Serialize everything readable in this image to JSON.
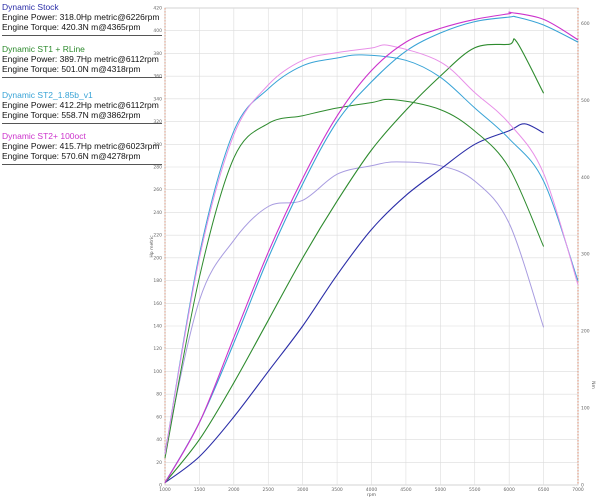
{
  "chart_data": {
    "type": "line",
    "title": "",
    "xlabel": "rpm",
    "ylabel_left": "Hp metric",
    "ylabel_right": "Nm",
    "xlim": [
      1000,
      7000
    ],
    "ylim_power": [
      0,
      420
    ],
    "ylim_torque": [
      0,
      620
    ],
    "x_ticks": [
      1000,
      1500,
      2000,
      2500,
      3000,
      3500,
      4000,
      4500,
      5000,
      5500,
      6000,
      6500,
      7000
    ],
    "power_ticks": [
      0,
      20,
      40,
      60,
      80,
      100,
      120,
      140,
      160,
      180,
      200,
      220,
      240,
      260,
      280,
      300,
      320,
      340,
      360,
      380,
      400,
      420
    ],
    "torque_ticks": [
      0,
      100,
      200,
      300,
      400,
      500,
      600
    ],
    "grid": true,
    "legend_position": "top-left",
    "series": [
      {
        "name": "Dynamic Stock",
        "color": "#2b2ea8",
        "torque_color": "#a89ce0",
        "summary": [
          "Engine Power: 318.0Hp metric@6226rpm",
          "Engine Torque: 420.3N m@4365rpm"
        ],
        "power": {
          "x": [
            1000,
            1500,
            2000,
            2500,
            3000,
            3500,
            4000,
            4500,
            5000,
            5500,
            6000,
            6226,
            6500
          ],
          "y": [
            2,
            25,
            60,
            100,
            140,
            185,
            225,
            255,
            278,
            300,
            312,
            318,
            310
          ]
        },
        "torque": {
          "x": [
            1000,
            1500,
            2000,
            2500,
            3000,
            3500,
            4000,
            4365,
            5000,
            5500,
            6000,
            6500
          ],
          "y": [
            45,
            240,
            318,
            362,
            370,
            404,
            415,
            420,
            415,
            395,
            340,
            205
          ]
        }
      },
      {
        "name": "Dynamic ST1 + RLine",
        "color": "#2e8b2e",
        "torque_color": "#2e8b2e",
        "summary": [
          "Engine Power: 389.7Hp metric@6112rpm",
          "Engine Torque: 501.0N m@4318rpm"
        ],
        "power": {
          "x": [
            1000,
            1500,
            2000,
            2500,
            3000,
            3500,
            4000,
            4500,
            5000,
            5500,
            6000,
            6112,
            6500
          ],
          "y": [
            2,
            40,
            90,
            145,
            200,
            250,
            295,
            330,
            360,
            385,
            388,
            390,
            345
          ]
        },
        "torque": {
          "x": [
            1000,
            1500,
            2000,
            2500,
            3000,
            3500,
            4000,
            4318,
            5000,
            5500,
            6000,
            6500
          ],
          "y": [
            35,
            270,
            425,
            470,
            480,
            490,
            497,
            501,
            488,
            460,
            412,
            310
          ]
        }
      },
      {
        "name": "Dynamic ST2_1.85b_v1",
        "color": "#38a3d6",
        "torque_color": "#38a3d6",
        "summary": [
          "Engine Power: 412.2Hp metric@6112rpm",
          "Engine Torque: 558.7N m@3862rpm"
        ],
        "power": {
          "x": [
            1000,
            1500,
            2000,
            2500,
            3000,
            3500,
            4000,
            4500,
            5000,
            5500,
            6000,
            6112,
            6500,
            7000
          ],
          "y": [
            2,
            55,
            125,
            200,
            265,
            320,
            355,
            382,
            398,
            408,
            412,
            412,
            405,
            390
          ]
        },
        "torque": {
          "x": [
            1000,
            1500,
            2000,
            2500,
            3000,
            3500,
            3862,
            4500,
            5000,
            5500,
            6000,
            6500,
            7000
          ],
          "y": [
            40,
            300,
            460,
            515,
            545,
            555,
            559,
            552,
            530,
            490,
            450,
            395,
            265
          ]
        }
      },
      {
        "name": "Dynamic ST2+ 100oct",
        "color": "#cc33cc",
        "torque_color": "#e890e8",
        "summary": [
          "Engine Power: 415.7Hp metric@6023rpm",
          "Engine Torque: 570.6N m@4278rpm"
        ],
        "power": {
          "x": [
            1000,
            1500,
            2000,
            2500,
            3000,
            3500,
            4000,
            4500,
            5000,
            5500,
            6000,
            6023,
            6500,
            7000
          ],
          "y": [
            2,
            55,
            130,
            205,
            270,
            325,
            365,
            390,
            402,
            410,
            415,
            416,
            410,
            392
          ]
        },
        "torque": {
          "x": [
            1000,
            1500,
            2000,
            2500,
            3000,
            3500,
            4000,
            4278,
            5000,
            5500,
            6000,
            6500,
            7000
          ],
          "y": [
            40,
            295,
            455,
            520,
            552,
            562,
            568,
            571,
            550,
            510,
            470,
            405,
            260
          ]
        }
      }
    ]
  }
}
